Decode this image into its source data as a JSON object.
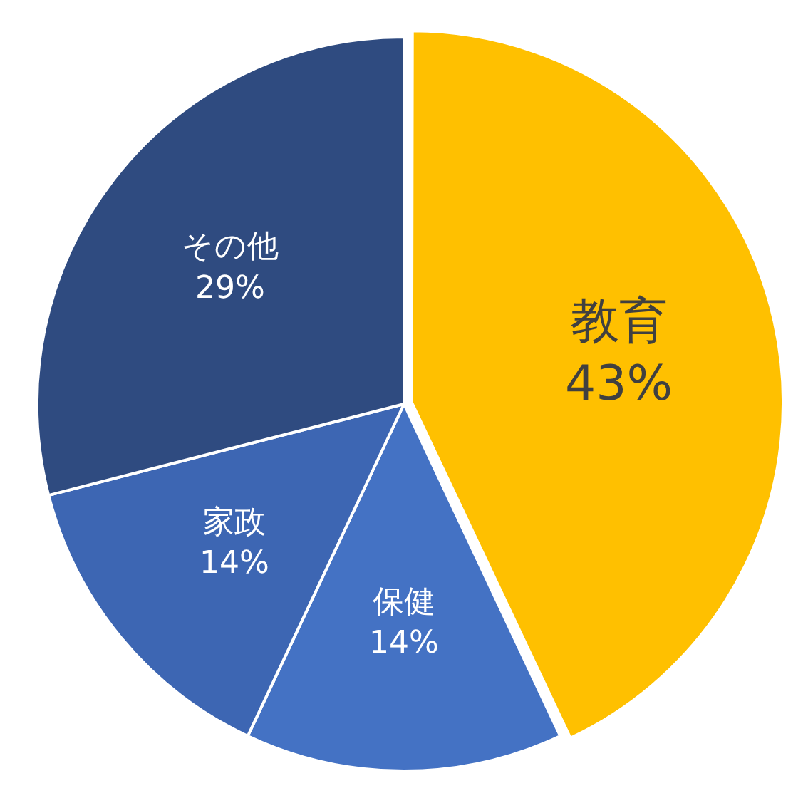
{
  "chart_data": {
    "type": "pie",
    "categories": [
      "教育",
      "保健",
      "家政",
      "その他"
    ],
    "values": [
      43,
      14,
      14,
      29
    ],
    "colors": [
      "#ffc000",
      "#4472c4",
      "#3d66b3",
      "#2f4b80"
    ],
    "value_labels": [
      "43%",
      "14%",
      "14%",
      "29%"
    ],
    "legend": false
  }
}
